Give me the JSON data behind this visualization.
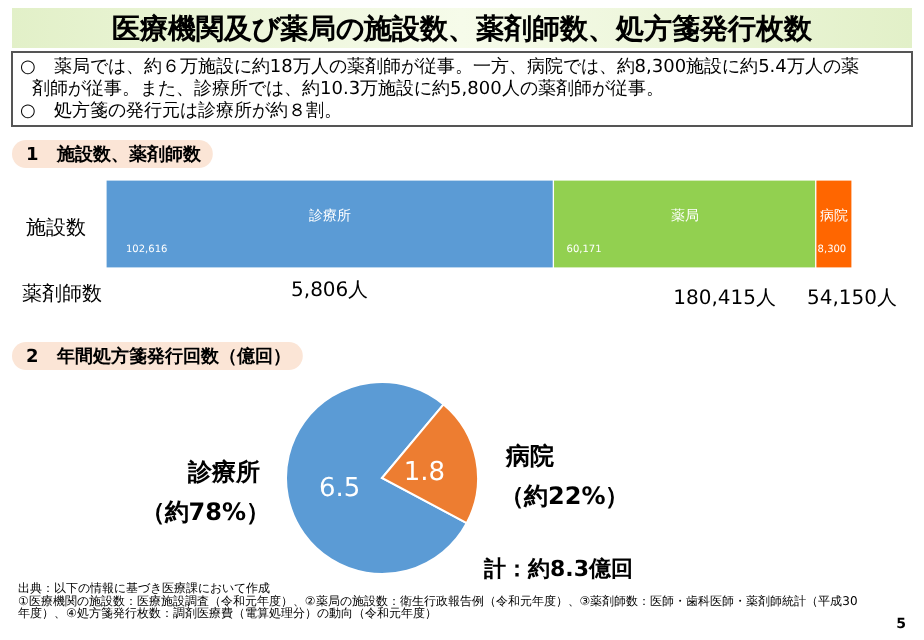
{
  "chart_data": [
    {
      "type": "other",
      "title": "医療機関及び薬局の施設数、薬剤師数、処方箋発行枚数",
      "annotations": [
        "○　薬局では、約６万施設に約18万人の薬剤師が従事。一方、病院では、約8,300施設に約5.4万人の薬剤師が従事。また、診療所では、約10.3万施設に約5,800人の薬剤師が従事。",
        "○　処方箋の発行元は診療所が約８割。"
      ]
    },
    {
      "type": "bar",
      "orientation": "horizontal",
      "stacked": true,
      "title": "1　施設数、薬剤師数",
      "categories": [
        "施設数"
      ],
      "series": [
        {
          "name": "診療所",
          "color": "#5b9bd5",
          "values": [
            102616
          ],
          "value_labels": [
            "102,616"
          ]
        },
        {
          "name": "薬局",
          "color": "#92d050",
          "values": [
            60171
          ],
          "value_labels": [
            "60,171"
          ]
        },
        {
          "name": "病院",
          "color": "#ff6600",
          "values": [
            8300
          ],
          "value_labels": [
            "8,300"
          ]
        }
      ],
      "annotations": [
        "薬剤師数",
        "5,806人",
        "180,415人",
        "54,150人"
      ]
    },
    {
      "type": "pie",
      "title": "2　年間処方箋発行回数（億回）",
      "categories": [
        "診療所",
        "病院"
      ],
      "values": [
        6.5,
        1.8
      ],
      "colors": [
        "#5b9bd5",
        "#ed7d31"
      ],
      "data_labels": true,
      "annotations": [
        "（約78%）",
        "（約22%）",
        "計：約8.3億回",
        "出典：以下の情報に基づき医療課において作成",
        "①医療機関の施設数：医療施設調査（令和元年度）、②薬局の施設数：衛生行政報告例（令和元年度）、③薬剤師数：医師・歯科医師・薬剤師統計（平成30年度）、④処方箋発行枚数：調剤医療費（電算処理分）の動向（令和元年度）",
        "5"
      ]
    }
  ]
}
